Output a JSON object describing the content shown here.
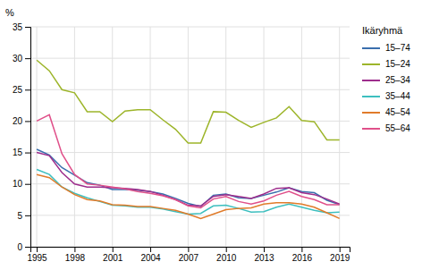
{
  "chart_data": {
    "type": "line",
    "ylabel": "%",
    "legend_title": "Ikäryhmä",
    "x": [
      1995,
      1996,
      1997,
      1998,
      1999,
      2000,
      2001,
      2002,
      2003,
      2004,
      2005,
      2006,
      2007,
      2008,
      2009,
      2010,
      2011,
      2012,
      2013,
      2014,
      2015,
      2016,
      2017,
      2018,
      2019
    ],
    "series": [
      {
        "name": "15–74",
        "color": "#3a6fad",
        "values": [
          15.5,
          14.6,
          12.6,
          11.4,
          10.2,
          9.8,
          9.1,
          9.1,
          9.0,
          8.8,
          8.4,
          7.7,
          6.9,
          6.4,
          8.2,
          8.4,
          7.8,
          7.7,
          8.2,
          8.7,
          9.4,
          8.8,
          8.6,
          7.4,
          6.7
        ]
      },
      {
        "name": "15–24",
        "color": "#9db52a",
        "values": [
          29.7,
          28.0,
          25.0,
          24.5,
          21.5,
          21.5,
          19.9,
          21.6,
          21.8,
          21.8,
          20.2,
          18.7,
          16.5,
          16.5,
          21.5,
          21.4,
          20.1,
          19.0,
          19.8,
          20.5,
          22.3,
          20.1,
          19.9,
          17.0,
          17.0
        ]
      },
      {
        "name": "25–34",
        "color": "#9e2d8c",
        "values": [
          15.0,
          14.5,
          11.8,
          10.0,
          9.5,
          9.5,
          9.4,
          9.3,
          9.1,
          8.8,
          8.2,
          7.5,
          6.6,
          6.5,
          8.0,
          8.3,
          8.0,
          7.7,
          8.4,
          9.3,
          9.4,
          8.6,
          8.3,
          7.6,
          6.8
        ]
      },
      {
        "name": "35–44",
        "color": "#3dbfbf",
        "values": [
          12.3,
          11.5,
          9.5,
          8.5,
          7.8,
          7.2,
          6.6,
          6.5,
          6.3,
          6.3,
          6.0,
          5.6,
          5.2,
          5.3,
          6.5,
          6.6,
          6.1,
          5.5,
          5.6,
          6.3,
          6.8,
          6.3,
          5.8,
          5.4,
          5.5
        ]
      },
      {
        "name": "45–54",
        "color": "#e07b2a",
        "values": [
          11.5,
          11.0,
          9.5,
          8.3,
          7.5,
          7.3,
          6.7,
          6.6,
          6.4,
          6.4,
          6.1,
          5.8,
          5.2,
          4.5,
          5.2,
          5.9,
          6.1,
          6.2,
          6.8,
          7.0,
          7.0,
          6.8,
          6.3,
          5.4,
          4.5
        ]
      },
      {
        "name": "55–64",
        "color": "#e0508a",
        "values": [
          20.0,
          21.0,
          14.8,
          11.5,
          10.0,
          9.8,
          9.5,
          9.2,
          8.8,
          8.5,
          8.1,
          7.5,
          6.5,
          6.2,
          7.6,
          8.0,
          7.2,
          6.8,
          7.3,
          8.2,
          8.8,
          8.0,
          7.5,
          6.7,
          6.7
        ]
      }
    ],
    "xlim": [
      1994.5,
      2019.8
    ],
    "xticks": [
      1995,
      1998,
      2001,
      2004,
      2007,
      2010,
      2013,
      2016,
      2019
    ],
    "ylim": [
      0,
      35
    ],
    "yticks": [
      0,
      5,
      10,
      15,
      20,
      25,
      30,
      35
    ],
    "grid": true,
    "legend": "right"
  }
}
